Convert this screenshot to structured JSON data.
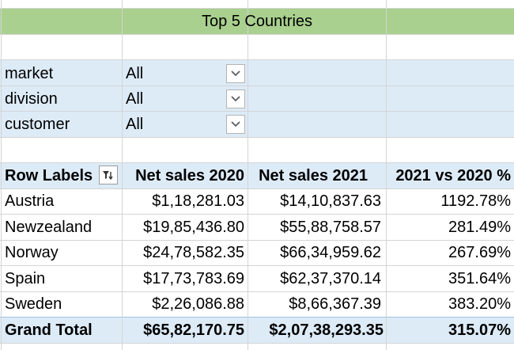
{
  "title": "Top 5 Countries",
  "filters": [
    {
      "label": "market",
      "value": "All"
    },
    {
      "label": "division",
      "value": "All"
    },
    {
      "label": "customer",
      "value": "All"
    }
  ],
  "pivot": {
    "headers": [
      "Row Labels",
      "Net sales 2020",
      "Net sales 2021",
      "2021 vs 2020 %"
    ],
    "rows": [
      {
        "country": "Austria",
        "sales2020": "$1,18,281.03",
        "sales2021": "$14,10,837.63",
        "pct": "1192.78%"
      },
      {
        "country": "Newzealand",
        "sales2020": "$19,85,436.80",
        "sales2021": "$55,88,758.57",
        "pct": "281.49%"
      },
      {
        "country": "Norway",
        "sales2020": "$24,78,582.35",
        "sales2021": "$66,34,959.62",
        "pct": "267.69%"
      },
      {
        "country": "Spain",
        "sales2020": "$17,73,783.69",
        "sales2021": "$62,37,370.14",
        "pct": "351.64%"
      },
      {
        "country": "Sweden",
        "sales2020": "$2,26,086.88",
        "sales2021": "$8,66,367.39",
        "pct": "383.20%"
      }
    ],
    "total": {
      "label": "Grand Total",
      "sales2020": "$65,82,170.75",
      "sales2021": "$2,07,38,293.35",
      "pct": "315.07%"
    }
  },
  "icons": {
    "dropdown": "chevron-down-icon",
    "filter": "filter-sort-icon"
  },
  "colors": {
    "title_fill": "#a9d08e",
    "pivot_fill": "#ddebf7",
    "pivot_border": "#9bc2e6",
    "gridline": "#d4d4d4"
  }
}
